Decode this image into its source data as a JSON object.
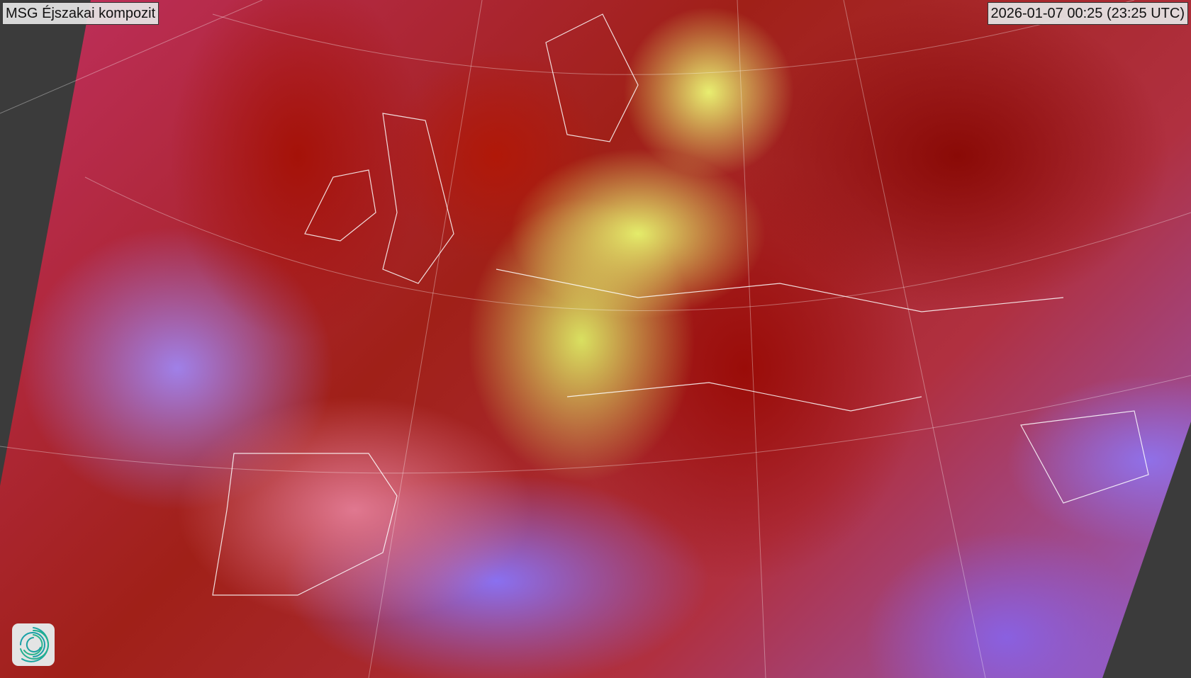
{
  "map": {
    "title": "MSG Éjszakai kompozit",
    "timestamp": "2026-01-07 00:25 (23:25 UTC)",
    "background_color": "#3b3b3b",
    "logo_icon": "spiral-logo-icon"
  }
}
